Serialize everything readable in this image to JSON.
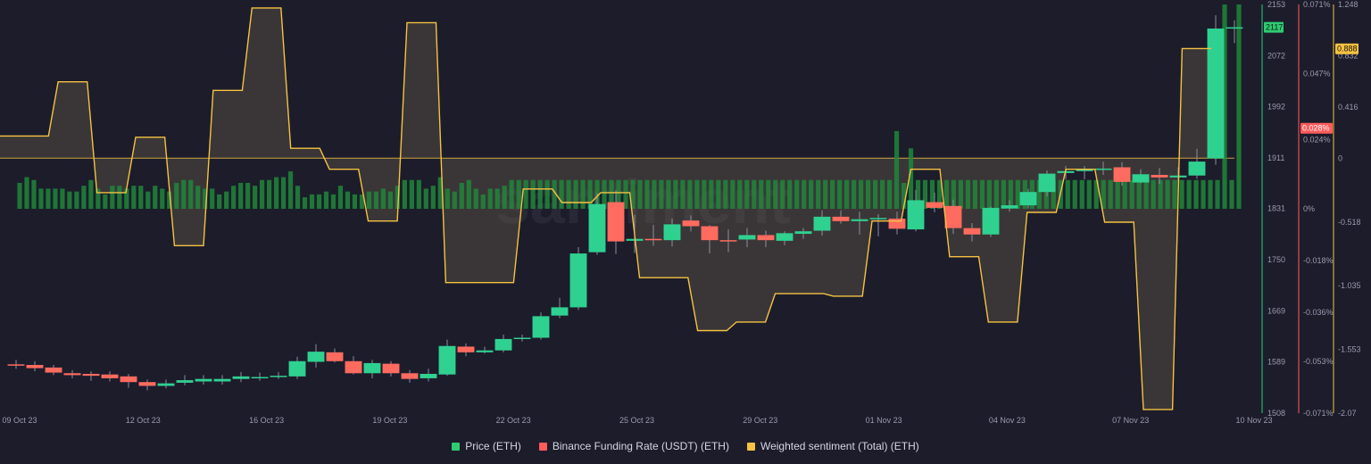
{
  "chart_data": {
    "type": "candlestick-combo",
    "watermark": "santiment",
    "x_labels": [
      "09 Oct 23",
      "12 Oct 23",
      "16 Oct 23",
      "19 Oct 23",
      "22 Oct 23",
      "25 Oct 23",
      "29 Oct 23",
      "01 Nov 23",
      "04 Nov 23",
      "07 Nov 23",
      "10 Nov 23"
    ],
    "axes": {
      "price": {
        "ticks": [
          "2153",
          "2072",
          "1992",
          "1911",
          "1831",
          "1750",
          "1669",
          "1589",
          "1508"
        ],
        "min": 1508,
        "max": 2153,
        "current": "2117",
        "color": "#26d07c"
      },
      "funding": {
        "ticks": [
          "0.071%",
          "0.047%",
          "0.024%",
          "0%",
          "-0.018%",
          "-0.036%",
          "-0.053%",
          "-0.071%"
        ],
        "min": -0.071,
        "max": 0.071,
        "current": "0.028%",
        "color": "#ff5b5b"
      },
      "sentiment": {
        "ticks": [
          "1.248",
          "0.832",
          "0.416",
          "0",
          "-0.518",
          "-1.035",
          "-1.553",
          "-2.07"
        ],
        "min": -2.07,
        "max": 1.248,
        "current": "0.888",
        "color": "#f5c242"
      }
    },
    "series": [
      {
        "name": "Price (ETH)",
        "color": "#2ecc71",
        "candles": [
          {
            "o": 1585,
            "c": 1583,
            "h": 1592,
            "l": 1578
          },
          {
            "o": 1584,
            "c": 1579,
            "h": 1590,
            "l": 1574
          },
          {
            "o": 1580,
            "c": 1572,
            "h": 1584,
            "l": 1568
          },
          {
            "o": 1571,
            "c": 1568,
            "h": 1576,
            "l": 1563
          },
          {
            "o": 1570,
            "c": 1567,
            "h": 1574,
            "l": 1559
          },
          {
            "o": 1569,
            "c": 1563,
            "h": 1574,
            "l": 1558
          },
          {
            "o": 1566,
            "c": 1557,
            "h": 1570,
            "l": 1548
          },
          {
            "o": 1557,
            "c": 1551,
            "h": 1561,
            "l": 1544
          },
          {
            "o": 1551,
            "c": 1555,
            "h": 1561,
            "l": 1547
          },
          {
            "o": 1556,
            "c": 1560,
            "h": 1568,
            "l": 1552
          },
          {
            "o": 1558,
            "c": 1562,
            "h": 1568,
            "l": 1553
          },
          {
            "o": 1558,
            "c": 1562,
            "h": 1568,
            "l": 1553
          },
          {
            "o": 1562,
            "c": 1566,
            "h": 1573,
            "l": 1557
          },
          {
            "o": 1563,
            "c": 1565,
            "h": 1572,
            "l": 1559
          },
          {
            "o": 1565,
            "c": 1567,
            "h": 1573,
            "l": 1562
          },
          {
            "o": 1566,
            "c": 1590,
            "h": 1597,
            "l": 1562
          },
          {
            "o": 1589,
            "c": 1605,
            "h": 1617,
            "l": 1580
          },
          {
            "o": 1604,
            "c": 1590,
            "h": 1610,
            "l": 1588
          },
          {
            "o": 1590,
            "c": 1571,
            "h": 1598,
            "l": 1569
          },
          {
            "o": 1571,
            "c": 1587,
            "h": 1592,
            "l": 1563
          },
          {
            "o": 1586,
            "c": 1571,
            "h": 1590,
            "l": 1566
          },
          {
            "o": 1571,
            "c": 1562,
            "h": 1576,
            "l": 1556
          },
          {
            "o": 1563,
            "c": 1570,
            "h": 1578,
            "l": 1558
          },
          {
            "o": 1569,
            "c": 1614,
            "h": 1624,
            "l": 1567
          },
          {
            "o": 1613,
            "c": 1604,
            "h": 1618,
            "l": 1598
          },
          {
            "o": 1604,
            "c": 1607,
            "h": 1613,
            "l": 1602
          },
          {
            "o": 1607,
            "c": 1625,
            "h": 1632,
            "l": 1604
          },
          {
            "o": 1625,
            "c": 1627,
            "h": 1632,
            "l": 1621
          },
          {
            "o": 1627,
            "c": 1661,
            "h": 1667,
            "l": 1624
          },
          {
            "o": 1662,
            "c": 1675,
            "h": 1690,
            "l": 1658
          },
          {
            "o": 1675,
            "c": 1760,
            "h": 1770,
            "l": 1671
          },
          {
            "o": 1762,
            "c": 1838,
            "h": 1855,
            "l": 1758
          },
          {
            "o": 1841,
            "c": 1779,
            "h": 1860,
            "l": 1759
          },
          {
            "o": 1780,
            "c": 1783,
            "h": 1821,
            "l": 1761
          },
          {
            "o": 1783,
            "c": 1781,
            "h": 1805,
            "l": 1772
          },
          {
            "o": 1781,
            "c": 1806,
            "h": 1815,
            "l": 1771
          },
          {
            "o": 1812,
            "c": 1803,
            "h": 1820,
            "l": 1795
          },
          {
            "o": 1803,
            "c": 1781,
            "h": 1805,
            "l": 1760
          },
          {
            "o": 1781,
            "c": 1780,
            "h": 1798,
            "l": 1762
          },
          {
            "o": 1782,
            "c": 1789,
            "h": 1800,
            "l": 1770
          },
          {
            "o": 1789,
            "c": 1781,
            "h": 1796,
            "l": 1770
          },
          {
            "o": 1780,
            "c": 1792,
            "h": 1795,
            "l": 1773
          },
          {
            "o": 1791,
            "c": 1795,
            "h": 1800,
            "l": 1783
          },
          {
            "o": 1796,
            "c": 1818,
            "h": 1828,
            "l": 1788
          },
          {
            "o": 1818,
            "c": 1811,
            "h": 1828,
            "l": 1807
          },
          {
            "o": 1811,
            "c": 1814,
            "h": 1826,
            "l": 1790
          },
          {
            "o": 1814,
            "c": 1816,
            "h": 1822,
            "l": 1787
          },
          {
            "o": 1815,
            "c": 1799,
            "h": 1826,
            "l": 1790
          },
          {
            "o": 1798,
            "c": 1844,
            "h": 1860,
            "l": 1795
          },
          {
            "o": 1841,
            "c": 1832,
            "h": 1856,
            "l": 1825
          },
          {
            "o": 1835,
            "c": 1800,
            "h": 1845,
            "l": 1791
          },
          {
            "o": 1800,
            "c": 1790,
            "h": 1808,
            "l": 1779
          },
          {
            "o": 1790,
            "c": 1832,
            "h": 1834,
            "l": 1786
          },
          {
            "o": 1831,
            "c": 1836,
            "h": 1844,
            "l": 1826
          },
          {
            "o": 1836,
            "c": 1857,
            "h": 1862,
            "l": 1831
          },
          {
            "o": 1857,
            "c": 1886,
            "h": 1891,
            "l": 1850
          },
          {
            "o": 1887,
            "c": 1890,
            "h": 1898,
            "l": 1877
          },
          {
            "o": 1890,
            "c": 1893,
            "h": 1898,
            "l": 1877
          },
          {
            "o": 1893,
            "c": 1894,
            "h": 1905,
            "l": 1884
          },
          {
            "o": 1896,
            "c": 1873,
            "h": 1904,
            "l": 1867
          },
          {
            "o": 1872,
            "c": 1885,
            "h": 1893,
            "l": 1871
          },
          {
            "o": 1884,
            "c": 1880,
            "h": 1895,
            "l": 1870
          },
          {
            "o": 1880,
            "c": 1883,
            "h": 1896,
            "l": 1873
          },
          {
            "o": 1883,
            "c": 1905,
            "h": 1925,
            "l": 1878
          },
          {
            "o": 1910,
            "c": 2115,
            "h": 2136,
            "l": 1900
          },
          {
            "o": 2117,
            "c": 2117,
            "h": 2128,
            "l": 2092
          }
        ]
      },
      {
        "name": "Binance Funding Rate (USDT) (ETH)",
        "color": "#ff5b5b",
        "values": [
          0.009,
          0.011,
          0.01,
          0.007,
          0.007,
          0.007,
          0.007,
          0.006,
          0.006,
          0.008,
          0.01,
          0.007,
          0.005,
          0.008,
          0.008,
          0.007,
          0.008,
          0.008,
          0.006,
          0.008,
          0.007,
          0.006,
          0.009,
          0.01,
          0.01,
          0.008,
          0.007,
          0.007,
          0.005,
          0.006,
          0.008,
          0.009,
          0.009,
          0.008,
          0.01,
          0.01,
          0.011,
          0.011,
          0.013,
          0.008,
          0.004,
          0.005,
          0.005,
          0.006,
          0.005,
          0.008,
          0.006,
          0.005,
          0.005,
          0.006,
          0.006,
          0.007,
          0.006,
          0.008,
          0.01,
          0.01,
          0.01,
          0.007,
          0.008,
          0.011,
          0.007,
          0.006,
          0.009,
          0.01,
          0.007,
          0.005,
          0.007,
          0.007,
          0.008,
          0.01,
          0.01,
          0.01,
          0.01,
          0.01,
          0.01,
          0.01,
          0.01,
          0.01,
          0.01,
          0.01,
          0.01,
          0.01,
          0.01,
          0.01,
          0.01,
          0.01,
          0.01,
          0.01,
          0.01,
          0.01,
          0.01,
          0.01,
          0.01,
          0.01,
          0.01,
          0.01,
          0.01,
          0.01,
          0.01,
          0.01,
          0.01,
          0.01,
          0.01,
          0.01,
          0.01,
          0.01,
          0.01,
          0.01,
          0.01,
          0.01,
          0.01,
          0.01,
          0.01,
          0.01,
          0.01,
          0.01,
          0.01,
          0.01,
          0.01,
          0.01,
          0.01,
          0.01,
          0.01,
          0.027,
          0.009,
          0.021,
          0.01,
          0.01,
          0.01,
          0.01,
          0.01,
          0.01,
          0.01,
          0.01,
          0.01,
          0.01,
          0.01,
          0.01,
          0.01,
          0.01,
          0.01,
          0.01,
          0.01,
          0.01,
          0.01,
          0.01,
          0.01,
          0.01,
          0.01,
          0.01,
          0.01,
          0.01,
          0.01,
          0.01,
          0.01,
          0.01,
          0.01,
          0.01,
          0.01,
          0.01,
          0.01,
          0.01,
          0.01,
          0.01,
          0.01,
          0.01,
          0.01,
          0.01,
          0.01,
          0.071,
          0.01,
          0.071
        ]
      },
      {
        "name": "Weighted sentiment (Total) (ETH)",
        "color": "#f5c242",
        "steps": [
          {
            "t": 0,
            "v": 0.18
          },
          {
            "t": 2.5,
            "v": 0.18
          },
          {
            "t": 3,
            "v": 0.62
          },
          {
            "t": 4.5,
            "v": 0.62
          },
          {
            "t": 5,
            "v": -0.28
          },
          {
            "t": 6.5,
            "v": -0.28
          },
          {
            "t": 7,
            "v": 0.17
          },
          {
            "t": 8.5,
            "v": 0.17
          },
          {
            "t": 9,
            "v": -0.71
          },
          {
            "t": 10.5,
            "v": -0.71
          },
          {
            "t": 11,
            "v": 0.55
          },
          {
            "t": 12.5,
            "v": 0.55
          },
          {
            "t": 13,
            "v": 1.22
          },
          {
            "t": 14.5,
            "v": 1.22
          },
          {
            "t": 15,
            "v": 0.08
          },
          {
            "t": 16.5,
            "v": 0.08
          },
          {
            "t": 17,
            "v": -0.09
          },
          {
            "t": 18.5,
            "v": -0.09
          },
          {
            "t": 19,
            "v": -0.51
          },
          {
            "t": 20.5,
            "v": -0.51
          },
          {
            "t": 21,
            "v": 1.1
          },
          {
            "t": 22.5,
            "v": 1.1
          },
          {
            "t": 23,
            "v": -1.01
          },
          {
            "t": 26.5,
            "v": -1.01
          },
          {
            "t": 27,
            "v": -0.25
          },
          {
            "t": 28.5,
            "v": -0.25
          },
          {
            "t": 29,
            "v": -0.36
          },
          {
            "t": 30.5,
            "v": -0.36
          },
          {
            "t": 31,
            "v": -0.28
          },
          {
            "t": 32.5,
            "v": -0.28
          },
          {
            "t": 33,
            "v": -0.97
          },
          {
            "t": 35.5,
            "v": -0.97
          },
          {
            "t": 36,
            "v": -1.4
          },
          {
            "t": 37.5,
            "v": -1.4
          },
          {
            "t": 38,
            "v": -1.33
          },
          {
            "t": 39.5,
            "v": -1.33
          },
          {
            "t": 40,
            "v": -1.1
          },
          {
            "t": 42.5,
            "v": -1.1
          },
          {
            "t": 43,
            "v": -1.12
          },
          {
            "t": 44.5,
            "v": -1.12
          },
          {
            "t": 45,
            "v": -0.51
          },
          {
            "t": 46.5,
            "v": -0.51
          },
          {
            "t": 47,
            "v": -0.09
          },
          {
            "t": 48.5,
            "v": -0.09
          },
          {
            "t": 49,
            "v": -0.8
          },
          {
            "t": 50.5,
            "v": -0.8
          },
          {
            "t": 51,
            "v": -1.33
          },
          {
            "t": 52.5,
            "v": -1.33
          },
          {
            "t": 53,
            "v": -0.44
          },
          {
            "t": 54.5,
            "v": -0.44
          },
          {
            "t": 55,
            "v": -0.09
          },
          {
            "t": 56.5,
            "v": -0.09
          },
          {
            "t": 57,
            "v": -0.52
          },
          {
            "t": 58.5,
            "v": -0.52
          },
          {
            "t": 59,
            "v": -2.04
          },
          {
            "t": 60.5,
            "v": -2.04
          },
          {
            "t": 61,
            "v": 0.89
          },
          {
            "t": 62.5,
            "v": 0.89
          }
        ]
      }
    ],
    "legend_placement": "bottom-center"
  },
  "legend": [
    {
      "label": "Price (ETH)",
      "color": "#2ecc71"
    },
    {
      "label": "Binance Funding Rate (USDT) (ETH)",
      "color": "#ff5b5b"
    },
    {
      "label": "Weighted sentiment (Total) (ETH)",
      "color": "#f5c242"
    }
  ]
}
